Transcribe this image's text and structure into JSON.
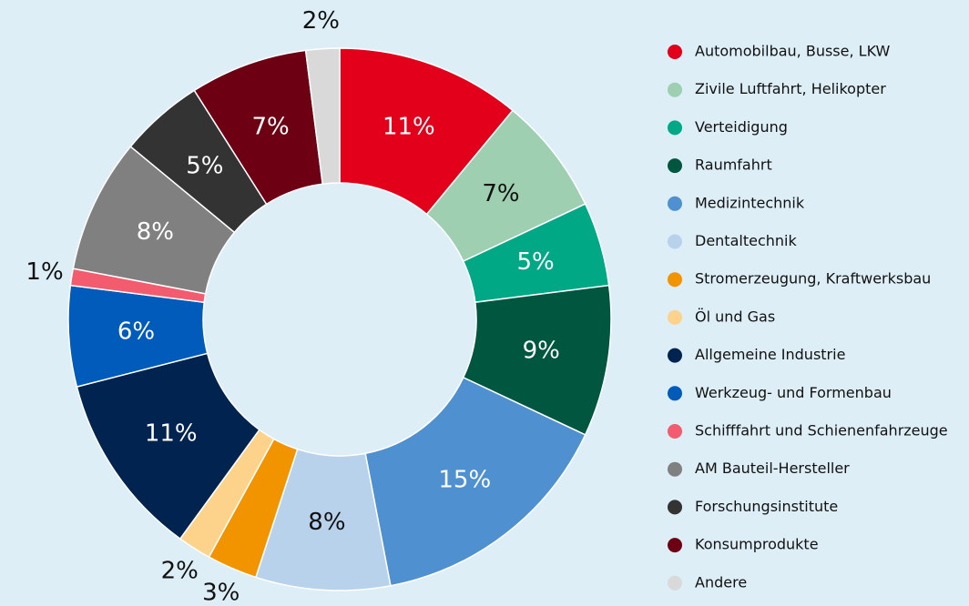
{
  "chart_data": {
    "type": "donut",
    "categories": [
      "Automobilbau, Busse, LKW",
      "Zivile Luftfahrt, Helikopter",
      "Verteidigung",
      "Raumfahrt",
      "Medizintechnik",
      "Dentaltechnik",
      "Stromerzeugung, Kraftwerksbau",
      "Öl und Gas",
      "Allgemeine Industrie",
      "Werkzeug- und Formenbau",
      "Schifffahrt und Schienenfahrzeuge",
      "AM Bauteil-Hersteller",
      "Forschungsinstitute",
      "Konsumprodukte",
      "Andere"
    ],
    "values": [
      11,
      7,
      5,
      9,
      15,
      8,
      3,
      2,
      11,
      6,
      1,
      8,
      5,
      7,
      2
    ],
    "value_labels": [
      "11%",
      "7%",
      "5%",
      "9%",
      "15%",
      "8%",
      "3%",
      "2%",
      "11%",
      "6%",
      "1%",
      "8%",
      "5%",
      "7%",
      "2%"
    ],
    "colors": [
      "#e2001a",
      "#9dcfb0",
      "#00a886",
      "#00563f",
      "#4f91d0",
      "#b8d2ec",
      "#f29400",
      "#fdd28a",
      "#00234f",
      "#005bbb",
      "#f25c6e",
      "#808080",
      "#333333",
      "#6e0013",
      "#d9d9d9"
    ],
    "legend": "right"
  }
}
